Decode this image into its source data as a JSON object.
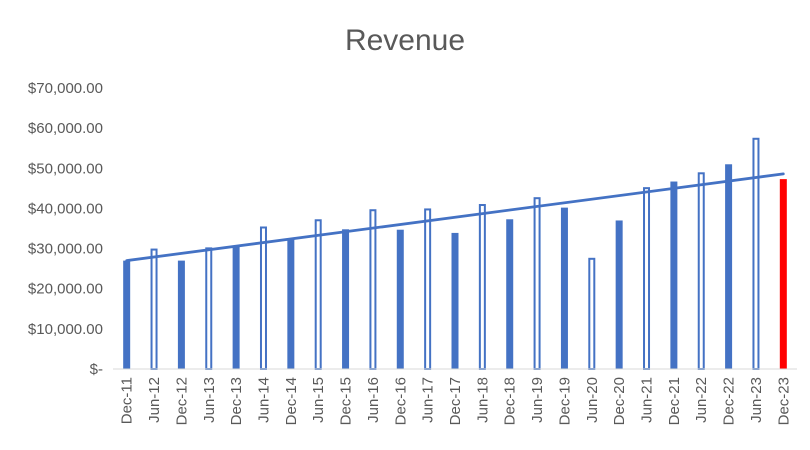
{
  "chart_data": {
    "type": "bar",
    "title": "Revenue",
    "xlabel": "",
    "ylabel": "",
    "ylim": [
      0,
      70000
    ],
    "yticks": [
      {
        "value": 0,
        "label": "$-"
      },
      {
        "value": 10000,
        "label": "$10,000.00"
      },
      {
        "value": 20000,
        "label": "$20,000.00"
      },
      {
        "value": 30000,
        "label": "$30,000.00"
      },
      {
        "value": 40000,
        "label": "$40,000.00"
      },
      {
        "value": 50000,
        "label": "$50,000.00"
      },
      {
        "value": 60000,
        "label": "$60,000.00"
      },
      {
        "value": 70000,
        "label": "$70,000.00"
      }
    ],
    "grid": false,
    "legend": "none",
    "categories": [
      "Dec-11",
      "Jun-12",
      "Dec-12",
      "Jun-13",
      "Dec-13",
      "Jun-14",
      "Dec-14",
      "Jun-15",
      "Dec-15",
      "Jun-16",
      "Dec-16",
      "Jun-17",
      "Dec-17",
      "Jun-18",
      "Dec-18",
      "Jun-19",
      "Dec-19",
      "Jun-20",
      "Dec-20",
      "Jun-21",
      "Dec-21",
      "Jun-22",
      "Dec-22",
      "Jun-23",
      "Dec-23"
    ],
    "values": [
      27000,
      30000,
      27000,
      30300,
      30700,
      35500,
      32500,
      37300,
      34800,
      39800,
      34700,
      40000,
      33900,
      41100,
      37300,
      42800,
      40200,
      27700,
      37000,
      45300,
      46700,
      49000,
      51000,
      57600,
      47300
    ],
    "trendline": {
      "type": "linear",
      "start": 27000,
      "end": 48600,
      "color": "#4472C4"
    },
    "colors": {
      "bar": "#4472C4",
      "highlight": "#FF0000",
      "highlight_index": 24
    }
  }
}
